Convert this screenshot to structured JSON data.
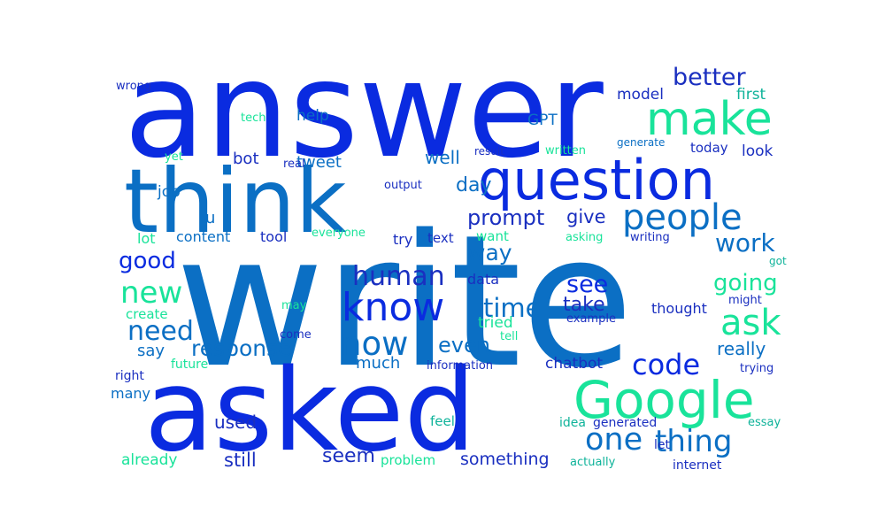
{
  "palette": {
    "blue": "#0a2be0",
    "steel": "#0b6fc4",
    "navy": "#1a2fc0",
    "teal": "#0fb39a",
    "mint": "#19e39a"
  },
  "words": [
    {
      "text": "write",
      "color": "steel"
    },
    {
      "text": "answer",
      "color": "blue"
    },
    {
      "text": "asked",
      "color": "blue"
    },
    {
      "text": "think",
      "color": "steel"
    },
    {
      "text": "question",
      "color": "blue"
    },
    {
      "text": "Google",
      "color": "mint"
    },
    {
      "text": "make",
      "color": "mint"
    },
    {
      "text": "people",
      "color": "steel"
    },
    {
      "text": "know",
      "color": "blue"
    },
    {
      "text": "now",
      "color": "steel"
    },
    {
      "text": "ask",
      "color": "mint"
    },
    {
      "text": "one",
      "color": "steel"
    },
    {
      "text": "thing",
      "color": "steel"
    },
    {
      "text": "code",
      "color": "blue"
    },
    {
      "text": "new",
      "color": "mint"
    },
    {
      "text": "human",
      "color": "navy"
    },
    {
      "text": "time",
      "color": "steel"
    },
    {
      "text": "need",
      "color": "steel"
    },
    {
      "text": "work",
      "color": "steel"
    },
    {
      "text": "better",
      "color": "navy"
    },
    {
      "text": "going",
      "color": "mint"
    },
    {
      "text": "good",
      "color": "blue"
    },
    {
      "text": "response",
      "color": "steel"
    },
    {
      "text": "prompt",
      "color": "navy"
    },
    {
      "text": "way",
      "color": "steel"
    },
    {
      "text": "see",
      "color": "blue"
    },
    {
      "text": "even",
      "color": "steel"
    },
    {
      "text": "take",
      "color": "navy"
    },
    {
      "text": "day",
      "color": "steel"
    },
    {
      "text": "give",
      "color": "navy"
    },
    {
      "text": "really",
      "color": "steel"
    },
    {
      "text": "seem",
      "color": "navy"
    },
    {
      "text": "still",
      "color": "navy"
    },
    {
      "text": "something",
      "color": "navy"
    },
    {
      "text": "say",
      "color": "steel"
    },
    {
      "text": "much",
      "color": "steel"
    },
    {
      "text": "chatbot",
      "color": "navy"
    },
    {
      "text": "well",
      "color": "steel"
    },
    {
      "text": "bot",
      "color": "navy"
    },
    {
      "text": "tweet",
      "color": "steel"
    },
    {
      "text": "help",
      "color": "steel"
    },
    {
      "text": "model",
      "color": "navy"
    },
    {
      "text": "first",
      "color": "teal"
    },
    {
      "text": "today",
      "color": "navy"
    },
    {
      "text": "look",
      "color": "navy"
    },
    {
      "text": "GPT",
      "color": "steel"
    },
    {
      "text": "job",
      "color": "steel"
    },
    {
      "text": "u",
      "color": "steel"
    },
    {
      "text": "lot",
      "color": "mint"
    },
    {
      "text": "content",
      "color": "steel"
    },
    {
      "text": "tool",
      "color": "navy"
    },
    {
      "text": "try",
      "color": "navy"
    },
    {
      "text": "text",
      "color": "navy"
    },
    {
      "text": "want",
      "color": "mint"
    },
    {
      "text": "writing",
      "color": "navy"
    },
    {
      "text": "data",
      "color": "navy"
    },
    {
      "text": "create",
      "color": "mint"
    },
    {
      "text": "tried",
      "color": "mint"
    },
    {
      "text": "thought",
      "color": "navy"
    },
    {
      "text": "might",
      "color": "navy"
    },
    {
      "text": "example",
      "color": "navy"
    },
    {
      "text": "used",
      "color": "navy"
    },
    {
      "text": "already",
      "color": "mint"
    },
    {
      "text": "problem",
      "color": "mint"
    },
    {
      "text": "actually",
      "color": "teal"
    },
    {
      "text": "internet",
      "color": "navy"
    },
    {
      "text": "generated",
      "color": "navy"
    },
    {
      "text": "essay",
      "color": "teal"
    },
    {
      "text": "idea",
      "color": "teal"
    },
    {
      "text": "let",
      "color": "navy"
    },
    {
      "text": "feel",
      "color": "teal"
    },
    {
      "text": "many",
      "color": "steel"
    },
    {
      "text": "right",
      "color": "navy"
    },
    {
      "text": "future",
      "color": "mint"
    },
    {
      "text": "information",
      "color": "navy"
    },
    {
      "text": "trying",
      "color": "navy"
    },
    {
      "text": "come",
      "color": "navy"
    },
    {
      "text": "tell",
      "color": "mint"
    },
    {
      "text": "may",
      "color": "mint"
    },
    {
      "text": "wrong",
      "color": "navy"
    },
    {
      "text": "tech",
      "color": "mint"
    },
    {
      "text": "yet",
      "color": "mint"
    },
    {
      "text": "real",
      "color": "navy"
    },
    {
      "text": "result",
      "color": "navy"
    },
    {
      "text": "output",
      "color": "navy"
    },
    {
      "text": "everyone",
      "color": "mint"
    },
    {
      "text": "asking",
      "color": "mint"
    },
    {
      "text": "written",
      "color": "mint"
    },
    {
      "text": "generate",
      "color": "steel"
    },
    {
      "text": "got",
      "color": "teal"
    }
  ]
}
